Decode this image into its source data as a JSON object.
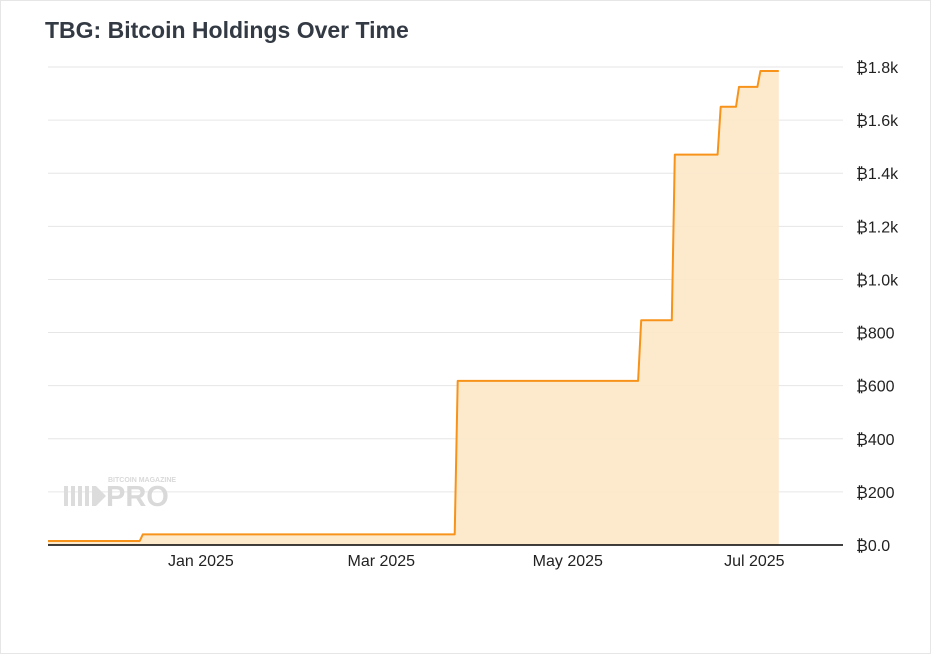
{
  "chart_data": {
    "type": "area",
    "title": "TBG: Bitcoin Holdings Over Time",
    "xlabel": "",
    "ylabel": "",
    "xlim": [
      "2024-11-12",
      "2025-07-30"
    ],
    "ylim": [
      0,
      1800
    ],
    "y_ticks": [
      {
        "value": 0,
        "label": "₿0.0"
      },
      {
        "value": 200,
        "label": "₿200"
      },
      {
        "value": 400,
        "label": "₿400"
      },
      {
        "value": 600,
        "label": "₿600"
      },
      {
        "value": 800,
        "label": "₿800"
      },
      {
        "value": 1000,
        "label": "₿1.0k"
      },
      {
        "value": 1200,
        "label": "₿1.2k"
      },
      {
        "value": 1400,
        "label": "₿1.4k"
      },
      {
        "value": 1600,
        "label": "₿1.6k"
      },
      {
        "value": 1800,
        "label": "₿1.8k"
      }
    ],
    "x_ticks": [
      {
        "date": "2025-01-01",
        "label": "Jan 2025"
      },
      {
        "date": "2025-03-01",
        "label": "Mar 2025"
      },
      {
        "date": "2025-05-01",
        "label": "May 2025"
      },
      {
        "date": "2025-07-01",
        "label": "Jul 2025"
      }
    ],
    "grid": true,
    "legend": "none",
    "colors": {
      "line": "#f7931a",
      "fill": "#fde8c8",
      "grid": "#e6e6e6",
      "axis": "#000000"
    },
    "series": [
      {
        "step": "after",
        "points": [
          {
            "date": "2024-11-12",
            "value": 15
          },
          {
            "date": "2024-12-12",
            "value": 15
          },
          {
            "date": "2024-12-13",
            "value": 40
          },
          {
            "date": "2025-03-25",
            "value": 40
          },
          {
            "date": "2025-03-26",
            "value": 618
          },
          {
            "date": "2025-05-24",
            "value": 618
          },
          {
            "date": "2025-05-25",
            "value": 846
          },
          {
            "date": "2025-06-04",
            "value": 846
          },
          {
            "date": "2025-06-05",
            "value": 1470
          },
          {
            "date": "2025-06-19",
            "value": 1470
          },
          {
            "date": "2025-06-20",
            "value": 1650
          },
          {
            "date": "2025-06-25",
            "value": 1650
          },
          {
            "date": "2025-06-26",
            "value": 1725
          },
          {
            "date": "2025-07-02",
            "value": 1725
          },
          {
            "date": "2025-07-03",
            "value": 1785
          },
          {
            "date": "2025-07-09",
            "value": 1785
          }
        ]
      }
    ]
  },
  "watermark": {
    "top": "BITCOIN MAGAZINE",
    "main": "PRO",
    "icon": "bitcoin-magazine-logo-icon"
  }
}
